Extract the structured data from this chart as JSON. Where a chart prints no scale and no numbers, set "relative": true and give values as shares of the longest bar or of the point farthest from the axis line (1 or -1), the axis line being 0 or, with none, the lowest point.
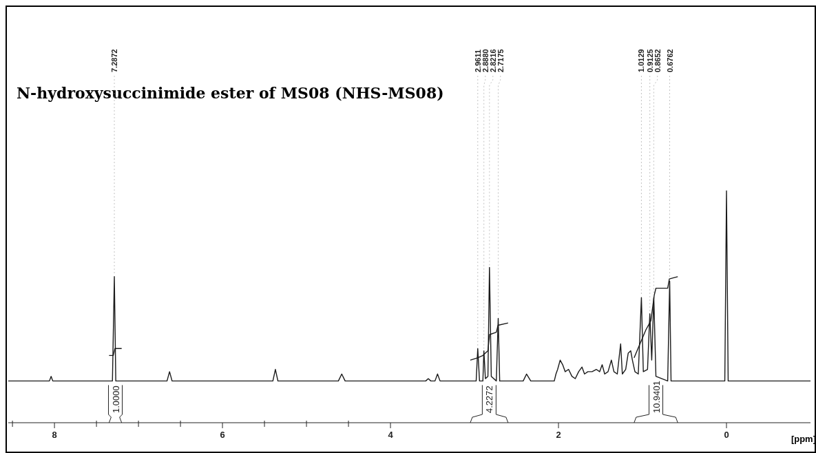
{
  "chart_data": {
    "type": "line",
    "title": "N-hydroxysuccinimide ester of MS08 (NHS-MS08)",
    "xlabel": "[ppm]",
    "relative": true,
    "xlim": [
      8.55,
      -1.0
    ],
    "xticks": [
      8,
      6,
      4,
      2,
      0
    ],
    "grid": false,
    "marker": "none",
    "line_style": "solid",
    "series": [
      {
        "color": "#1a1a1a",
        "x": [
          8.55,
          8.06,
          8.04,
          8.02,
          7.31,
          7.2872,
          7.27,
          6.66,
          6.63,
          6.6,
          5.4,
          5.37,
          5.34,
          4.62,
          4.58,
          4.54,
          3.58,
          3.55,
          3.52,
          3.47,
          3.44,
          3.41,
          2.98,
          2.9611,
          2.94,
          2.9,
          2.888,
          2.87,
          2.84,
          2.8216,
          2.8,
          2.74,
          2.7175,
          2.7,
          2.42,
          2.38,
          2.33,
          2.05,
          2.03,
          2.01,
          1.98,
          1.95,
          1.92,
          1.88,
          1.84,
          1.8,
          1.76,
          1.72,
          1.69,
          1.65,
          1.6,
          1.55,
          1.51,
          1.48,
          1.45,
          1.41,
          1.37,
          1.34,
          1.3,
          1.26,
          1.24,
          1.2,
          1.17,
          1.14,
          1.12,
          1.09,
          1.05,
          1.0129,
          0.99,
          0.94,
          0.9125,
          0.89,
          0.8652,
          0.84,
          0.7,
          0.6762,
          0.66,
          0.02,
          0.0,
          -0.02,
          -1.0
        ],
        "values": [
          0.18,
          0.18,
          0.2,
          0.18,
          0.18,
          0.63,
          0.18,
          0.18,
          0.22,
          0.18,
          0.18,
          0.23,
          0.18,
          0.18,
          0.21,
          0.18,
          0.18,
          0.19,
          0.18,
          0.18,
          0.21,
          0.18,
          0.18,
          0.32,
          0.18,
          0.18,
          0.31,
          0.19,
          0.2,
          0.67,
          0.2,
          0.18,
          0.45,
          0.18,
          0.18,
          0.21,
          0.18,
          0.18,
          0.21,
          0.23,
          0.27,
          0.25,
          0.22,
          0.23,
          0.2,
          0.19,
          0.22,
          0.24,
          0.21,
          0.22,
          0.22,
          0.23,
          0.22,
          0.25,
          0.21,
          0.22,
          0.27,
          0.22,
          0.21,
          0.34,
          0.21,
          0.23,
          0.3,
          0.31,
          0.27,
          0.22,
          0.21,
          0.54,
          0.22,
          0.23,
          0.47,
          0.27,
          0.54,
          0.2,
          0.18,
          0.61,
          0.18,
          0.18,
          1.0,
          0.18,
          0.18
        ]
      },
      {
        "color": "#1a1a1a",
        "x": [
          7.35,
          7.3,
          7.28,
          7.2,
          7.1,
          3.05,
          2.96,
          2.9,
          2.84,
          2.82,
          2.74,
          2.72,
          2.6,
          2.5,
          1.1,
          0.96,
          0.9,
          0.86,
          0.84,
          0.7,
          0.68,
          0.58
        ],
        "values": [
          0.29,
          0.29,
          0.32,
          0.32,
          null,
          0.27,
          0.28,
          0.29,
          0.31,
          0.38,
          0.39,
          0.42,
          0.43,
          null,
          0.28,
          0.4,
          0.44,
          0.55,
          0.58,
          0.58,
          0.62,
          0.63
        ]
      }
    ],
    "annotations": [
      {
        "text": "7.2872",
        "x": 7.2872,
        "y": 0.63
      },
      {
        "text": "2.9611",
        "x": 2.9611,
        "y": 0.32
      },
      {
        "text": "2.8880",
        "x": 2.888,
        "y": 0.31
      },
      {
        "text": "2.8216",
        "x": 2.8216,
        "y": 0.67
      },
      {
        "text": "2.7175",
        "x": 2.7175,
        "y": 0.45
      },
      {
        "text": "1.0129",
        "x": 1.0129,
        "y": 0.54
      },
      {
        "text": "0.9125",
        "x": 0.9125,
        "y": 0.47
      },
      {
        "text": "0.8652",
        "x": 0.8652,
        "y": 0.54
      },
      {
        "text": "0.6762",
        "x": 0.6762,
        "y": 0.61
      },
      "1.0000",
      "4.2272",
      "10.9401"
    ]
  }
}
